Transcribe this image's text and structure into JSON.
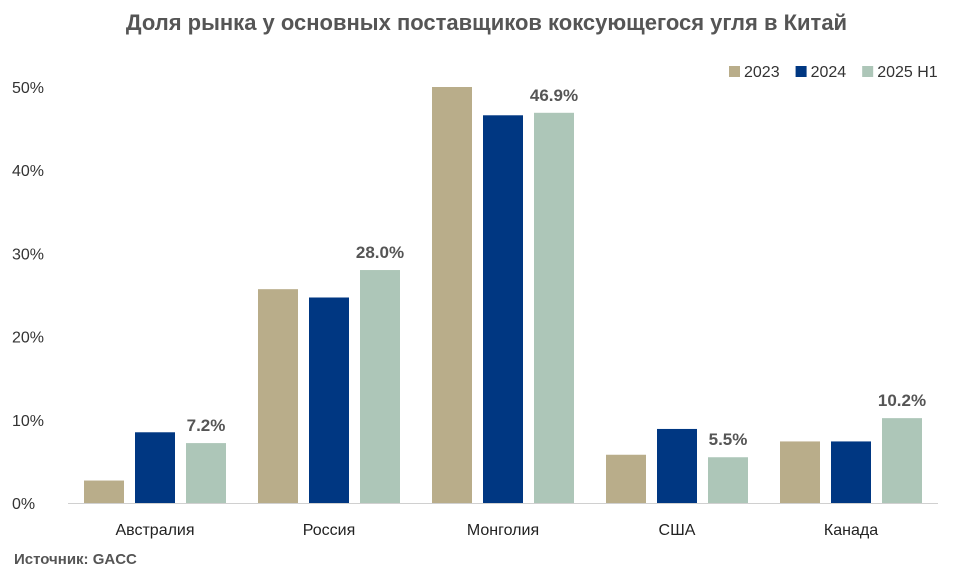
{
  "chart_data": {
    "type": "bar",
    "title": "Доля рынка у основных поставщиков коксующегося угля в Китай",
    "source": "Источник: GACC",
    "categories": [
      "Австралия",
      "Россия",
      "Монголия",
      "США",
      "Канада"
    ],
    "series": [
      {
        "name": "2023",
        "color": "#b9ad8a",
        "values": [
          2.7,
          25.7,
          50.0,
          5.8,
          7.4
        ]
      },
      {
        "name": "2024",
        "color": "#003782",
        "values": [
          8.5,
          24.7,
          46.6,
          8.9,
          7.4
        ]
      },
      {
        "name": "2025 H1",
        "color": "#adc6b8",
        "values": [
          7.2,
          28.0,
          46.9,
          5.5,
          10.2
        ]
      }
    ],
    "data_labels": {
      "series": "2025 H1",
      "values": [
        "7.2%",
        "28.0%",
        "46.9%",
        "5.5%",
        "10.2%"
      ]
    },
    "yticks": [
      "0%",
      "10%",
      "20%",
      "30%",
      "40%",
      "50%"
    ],
    "ylim": [
      0,
      50
    ],
    "xlabel": "",
    "ylabel": "",
    "legend_position": "top-right",
    "grid": false
  }
}
